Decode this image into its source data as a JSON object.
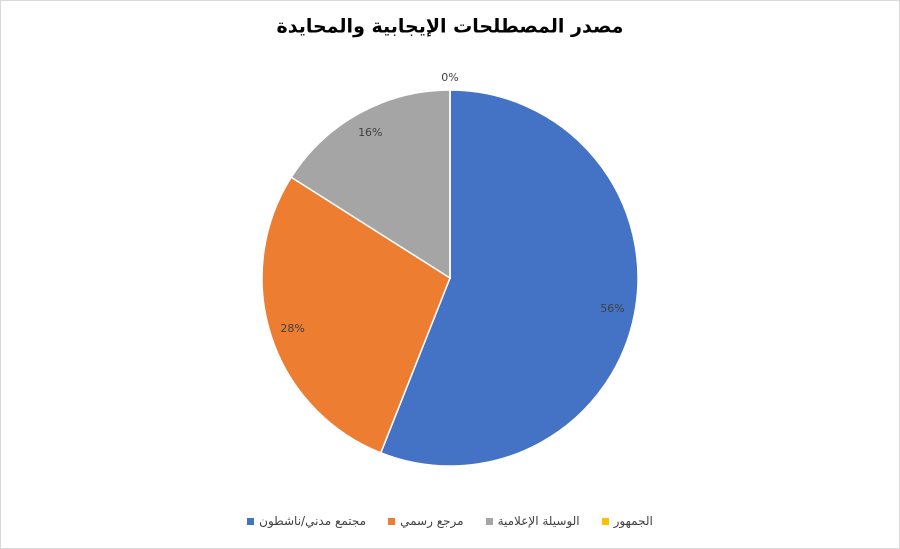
{
  "chart_data": {
    "type": "pie",
    "title": "مصدر المصطلحات الإيجابية والمحايدة",
    "categories": [
      "مجتمع مدني/ناشطون",
      "مرجع رسمي",
      "الوسيلة الإعلامية",
      "الجمهور"
    ],
    "values": [
      56,
      28,
      16,
      0
    ],
    "value_labels": [
      "56%",
      "28%",
      "16%",
      "0%"
    ],
    "colors": [
      "#4472c4",
      "#ed7d31",
      "#a5a5a5",
      "#ffc000"
    ],
    "legend": "bottom"
  }
}
